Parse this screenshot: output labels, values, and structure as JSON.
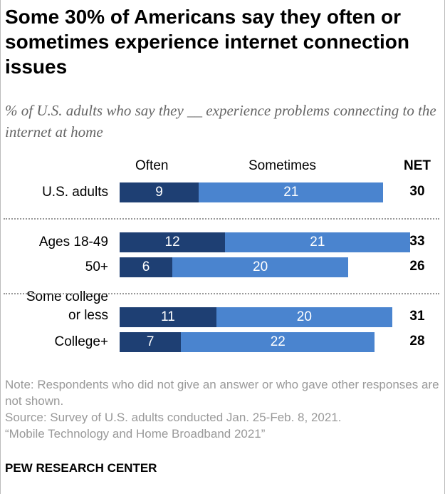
{
  "title": "Some 30% of Americans say they often or sometimes experience internet connection issues",
  "subtitle": "% of U.S. adults who say they __ experience problems connecting to the internet at home",
  "chart_data": {
    "type": "bar",
    "orientation": "horizontal-stacked",
    "categories": [
      "U.S. adults",
      "Ages 18-49",
      "50+",
      "Some college or less",
      "College+"
    ],
    "series": [
      {
        "name": "Often",
        "values": [
          9,
          12,
          6,
          11,
          7
        ],
        "color": "#1e3f73"
      },
      {
        "name": "Sometimes",
        "values": [
          21,
          21,
          20,
          20,
          22
        ],
        "color": "#4a84cf"
      }
    ],
    "net_label": "NET",
    "net": [
      30,
      33,
      26,
      31,
      28
    ],
    "groups": [
      [
        "U.S. adults"
      ],
      [
        "Ages 18-49",
        "50+"
      ],
      [
        "Some college or less",
        "College+"
      ]
    ]
  },
  "labels": [
    "U.S. adults",
    "Ages 18-49",
    "50+",
    "Some college\nor less",
    "College+"
  ],
  "note": "Note: Respondents who did not give an answer or who gave other responses are not shown.",
  "source": "Source: Survey of U.S. adults conducted Jan. 25-Feb. 8, 2021.",
  "report": "“Mobile Technology and Home Broadband 2021”",
  "brand": "PEW RESEARCH CENTER"
}
